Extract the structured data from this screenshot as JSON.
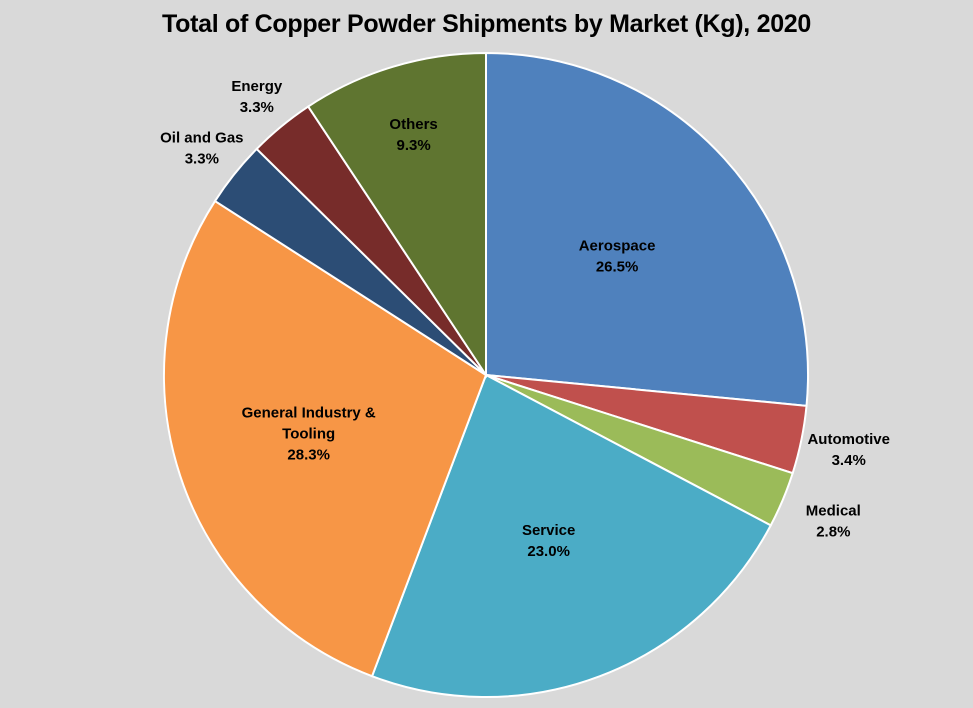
{
  "chart_data": {
    "type": "pie",
    "title": "Total of Copper Powder Shipments by Market (Kg), 2020",
    "slices": [
      {
        "label": "Aerospace",
        "value": 26.5,
        "value_label": "26.5%",
        "color": "#4f81bd"
      },
      {
        "label": "Automotive",
        "value": 3.4,
        "value_label": "3.4%",
        "color": "#c0504d"
      },
      {
        "label": "Medical",
        "value": 2.8,
        "value_label": "2.8%",
        "color": "#9bbb59"
      },
      {
        "label": "Service",
        "value": 23.0,
        "value_label": "23.0%",
        "color": "#4bacc6"
      },
      {
        "label": "General Industry & Tooling",
        "value": 28.3,
        "value_label": "28.3%",
        "color": "#f79646"
      },
      {
        "label": "Oil and Gas",
        "value": 3.3,
        "value_label": "3.3%",
        "color": "#2c4d75"
      },
      {
        "label": "Energy",
        "value": 3.3,
        "value_label": "3.3%",
        "color": "#772c2a"
      },
      {
        "label": "Others",
        "value": 9.3,
        "value_label": "9.3%",
        "color": "#5f7530"
      }
    ],
    "start_angle": "12 o'clock",
    "direction": "clockwise",
    "legend": "none"
  }
}
